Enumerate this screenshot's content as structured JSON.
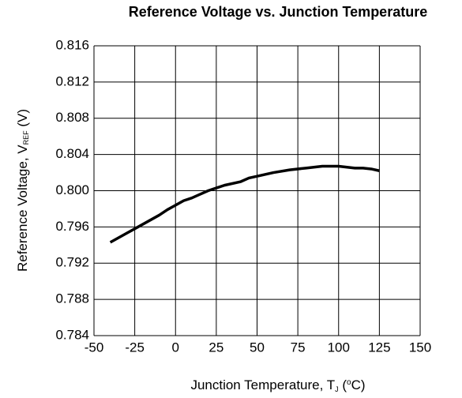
{
  "chart_data": {
    "type": "line",
    "title": "Reference Voltage vs. Junction Temperature",
    "ylabel": "Reference Voltage, V",
    "ylabel_sub": "REF",
    "ylabel_unit": " (V)",
    "xlabel": "Junction Temperature, T",
    "xlabel_sub": "J",
    "xlabel_open": " (",
    "xlabel_sup": "o",
    "xlabel_unit": "C)",
    "x": [
      -40,
      -30,
      -25,
      -20,
      -10,
      -5,
      0,
      5,
      10,
      15,
      20,
      25,
      30,
      40,
      45,
      50,
      60,
      70,
      80,
      90,
      100,
      110,
      115,
      120,
      125
    ],
    "values": [
      0.7943,
      0.7953,
      0.7958,
      0.7963,
      0.7973,
      0.7979,
      0.7984,
      0.7989,
      0.7992,
      0.7996,
      0.8,
      0.8003,
      0.8006,
      0.801,
      0.8014,
      0.8016,
      0.802,
      0.8023,
      0.8025,
      0.8027,
      0.8027,
      0.8025,
      0.8025,
      0.8024,
      0.8022
    ],
    "color": "#000000",
    "xlim": [
      -50,
      150
    ],
    "xticks": [
      -50,
      -25,
      0,
      25,
      50,
      75,
      100,
      125,
      150
    ],
    "ylim": [
      0.784,
      0.816
    ],
    "yticks": [
      0.784,
      0.788,
      0.792,
      0.796,
      {
        "value": 0.8,
        "label": "0.800"
      },
      0.804,
      0.808,
      0.812,
      0.816
    ],
    "grid": true
  }
}
